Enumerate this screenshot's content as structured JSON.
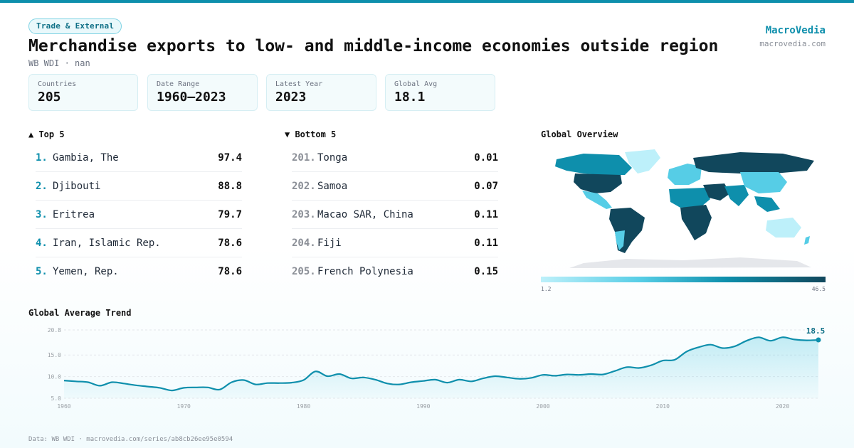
{
  "header": {
    "badge": "Trade & External",
    "title": "Merchandise exports to low- and middle-income economies outside region (…",
    "subtitle": "WB WDI · nan",
    "brand": "MacroVedia",
    "brand_url": "macrovedia.com"
  },
  "stats": [
    {
      "label": "Countries",
      "value": "205"
    },
    {
      "label": "Date Range",
      "value": "1960–2023"
    },
    {
      "label": "Latest Year",
      "value": "2023"
    },
    {
      "label": "Global Avg",
      "value": "18.1"
    }
  ],
  "top5": {
    "heading": "▲ Top 5",
    "items": [
      {
        "rank": "1.",
        "name": "Gambia, The",
        "value": "97.4"
      },
      {
        "rank": "2.",
        "name": "Djibouti",
        "value": "88.8"
      },
      {
        "rank": "3.",
        "name": "Eritrea",
        "value": "79.7"
      },
      {
        "rank": "4.",
        "name": "Iran, Islamic Rep.",
        "value": "78.6"
      },
      {
        "rank": "5.",
        "name": "Yemen, Rep.",
        "value": "78.6"
      }
    ]
  },
  "bottom5": {
    "heading": "▼ Bottom 5",
    "items": [
      {
        "rank": "201.",
        "name": "Tonga",
        "value": "0.01"
      },
      {
        "rank": "202.",
        "name": "Samoa",
        "value": "0.07"
      },
      {
        "rank": "203.",
        "name": "Macao SAR, China",
        "value": "0.11"
      },
      {
        "rank": "204.",
        "name": "Fiji",
        "value": "0.11"
      },
      {
        "rank": "205.",
        "name": "French Polynesia",
        "value": "0.15"
      }
    ]
  },
  "map": {
    "heading": "Global Overview",
    "legend_min": "1.2",
    "legend_max": "46.5",
    "colors": {
      "low": "#bdf0fa",
      "mid": "#0e8fac",
      "high": "#11475c",
      "nodata": "#e5e7eb"
    }
  },
  "trend": {
    "heading": "Global Average Trend"
  },
  "footer": "Data: WB WDI · macrovedia.com/series/ab8cb26ee95e0594",
  "chart_data": {
    "type": "area",
    "title": "Global Average Trend",
    "color": "#0e8fac",
    "ylim": [
      5.0,
      20.8
    ],
    "yticks": [
      "5.0",
      "10.0",
      "15.0",
      "20.8"
    ],
    "xticks": [
      "1960",
      "1970",
      "1980",
      "1990",
      "2000",
      "2010",
      "2020"
    ],
    "grid": true,
    "last_label": "18.5",
    "x": [
      1960,
      1961,
      1962,
      1963,
      1964,
      1965,
      1966,
      1967,
      1968,
      1969,
      1970,
      1971,
      1972,
      1973,
      1974,
      1975,
      1976,
      1977,
      1978,
      1979,
      1980,
      1981,
      1982,
      1983,
      1984,
      1985,
      1986,
      1987,
      1988,
      1989,
      1990,
      1991,
      1992,
      1993,
      1994,
      1995,
      1996,
      1997,
      1998,
      1999,
      2000,
      2001,
      2002,
      2003,
      2004,
      2005,
      2006,
      2007,
      2008,
      2009,
      2010,
      2011,
      2012,
      2013,
      2014,
      2015,
      2016,
      2017,
      2018,
      2019,
      2020,
      2021,
      2022,
      2023
    ],
    "values": [
      9.1,
      8.9,
      8.7,
      7.9,
      8.7,
      8.4,
      8.0,
      7.7,
      7.4,
      6.8,
      7.4,
      7.5,
      7.5,
      7.0,
      8.7,
      9.2,
      8.2,
      8.5,
      8.5,
      8.6,
      9.2,
      11.2,
      10.1,
      10.6,
      9.6,
      9.8,
      9.3,
      8.4,
      8.2,
      8.7,
      9.0,
      9.3,
      8.6,
      9.3,
      8.9,
      9.6,
      10.1,
      9.8,
      9.5,
      9.7,
      10.4,
      10.2,
      10.5,
      10.4,
      10.6,
      10.5,
      11.3,
      12.2,
      12.0,
      12.6,
      13.7,
      13.9,
      15.8,
      16.8,
      17.4,
      16.6,
      17.0,
      18.3,
      19.1,
      18.3,
      19.1,
      18.6,
      18.4,
      18.5
    ]
  }
}
